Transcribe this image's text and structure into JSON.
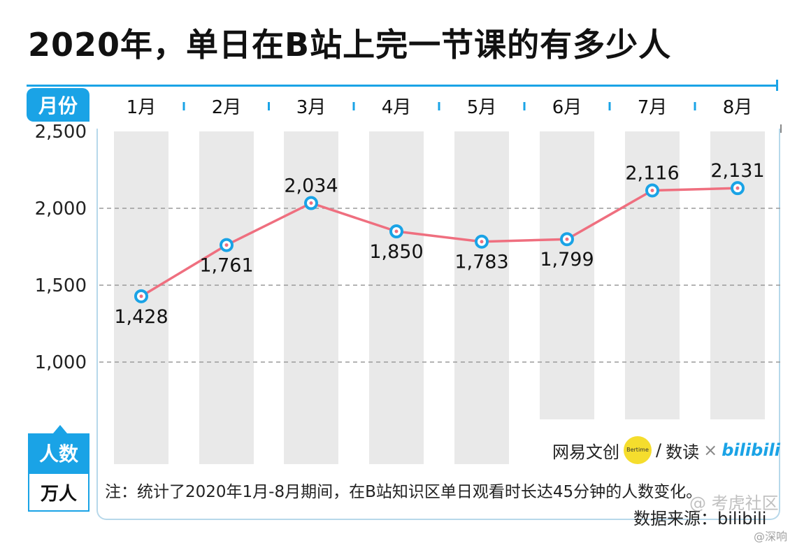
{
  "title": "2020年，单日在B站上完一节课的有多少人",
  "month_label": "月份",
  "unit_label_1": "人数",
  "unit_label_2": "万人",
  "brand": {
    "part1": "网易文创",
    "logo_text": "Bertime",
    "slash": "/",
    "part2": "数读",
    "times": "×",
    "part3": "bilibili"
  },
  "footnote": "注：统计了2020年1月-8月期间，在B站知识区单日观看时长达45分钟的人数变化。",
  "source": "数据来源：bilibili",
  "watermark": {
    "community": "@ 考虎社区",
    "author": "@深响"
  },
  "colors": {
    "accent": "#1aa3e6",
    "line": "#ef6f7f",
    "column": "#e9e9e9",
    "grid": "#9a9a9a"
  },
  "chart_data": {
    "type": "line",
    "categories": [
      "1月",
      "2月",
      "3月",
      "4月",
      "5月",
      "6月",
      "7月",
      "8月"
    ],
    "series": [
      {
        "values": [
          1428,
          1761,
          2034,
          1850,
          1783,
          1799,
          2116,
          2131
        ]
      }
    ],
    "data_labels": [
      "1,428",
      "1,761",
      "2,034",
      "1,850",
      "1,783",
      "1,799",
      "2,116",
      "2,131"
    ],
    "yticks": [
      "1,000",
      "1,500",
      "2,000",
      "2,500"
    ],
    "ytick_values": [
      1000,
      1500,
      2000,
      2500
    ],
    "ylim": [
      500,
      2500
    ],
    "grid": true,
    "legend": "none"
  }
}
